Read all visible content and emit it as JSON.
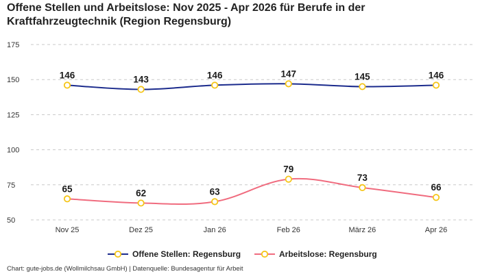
{
  "title": "Offene Stellen und Arbeitslose: Nov 2025 - Apr 2026 für Berufe in der Kraftfahrzeugtechnik (Region Regensburg)",
  "footer": "Chart: gute-jobs.de (Wollmilchsau GmbH) | Datenquelle: Bundesagentur für Arbeit",
  "chart_data": {
    "type": "line",
    "title": "Offene Stellen und Arbeitslose: Nov 2025 - Apr 2026 für Berufe in der Kraftfahrzeugtechnik (Region Regensburg)",
    "xlabel": "",
    "ylabel": "",
    "categories": [
      "Nov 25",
      "Dez 25",
      "Jan 26",
      "Feb 26",
      "März 26",
      "Apr 26"
    ],
    "ylim": [
      50,
      175
    ],
    "yticks": [
      50,
      75,
      100,
      125,
      150,
      175
    ],
    "grid": true,
    "legend_position": "bottom",
    "marker_color": "#f5c518",
    "series": [
      {
        "name": "Offene Stellen: Regensburg",
        "values": [
          146,
          143,
          146,
          147,
          145,
          146
        ],
        "color": "#1a2a8c"
      },
      {
        "name": "Arbeitslose: Regensburg",
        "values": [
          65,
          62,
          63,
          79,
          73,
          66
        ],
        "color": "#f06b7e"
      }
    ]
  }
}
